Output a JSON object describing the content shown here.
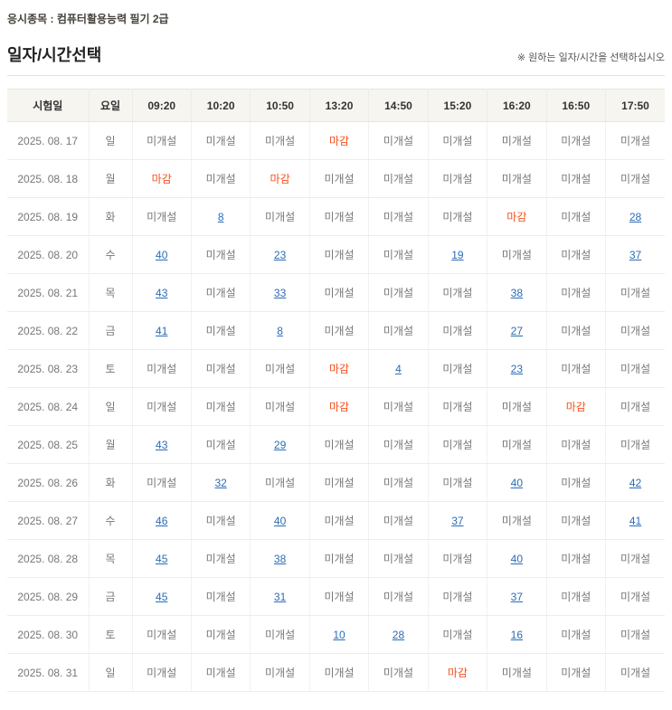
{
  "header": {
    "breadcrumb": "응시종목 : 컴퓨터활용능력 필기 2급",
    "page_title": "일자/시간선택",
    "note": "※ 원하는 일자/시간을 선택하십시오"
  },
  "legend": {
    "closed": "미개설",
    "full": "마감"
  },
  "colors": {
    "accent_full": "#f4511e",
    "link_color": "#2b6cb5",
    "closed_text": "#777777",
    "header_bg": "#f6f5f0"
  },
  "table": {
    "columns": [
      "시험일",
      "요일",
      "09:20",
      "10:20",
      "10:50",
      "13:20",
      "14:50",
      "15:20",
      "16:20",
      "16:50",
      "17:50"
    ],
    "rows": [
      {
        "date": "2025. 08. 17",
        "day": "일",
        "cells": [
          "미개설",
          "미개설",
          "미개설",
          "마감",
          "미개설",
          "미개설",
          "미개설",
          "미개설",
          "미개설"
        ]
      },
      {
        "date": "2025. 08. 18",
        "day": "월",
        "cells": [
          "마감",
          "미개설",
          "마감",
          "미개설",
          "미개설",
          "미개설",
          "미개설",
          "미개설",
          "미개설"
        ]
      },
      {
        "date": "2025. 08. 19",
        "day": "화",
        "cells": [
          "미개설",
          "8",
          "미개설",
          "미개설",
          "미개설",
          "미개설",
          "마감",
          "미개설",
          "28"
        ]
      },
      {
        "date": "2025. 08. 20",
        "day": "수",
        "cells": [
          "40",
          "미개설",
          "23",
          "미개설",
          "미개설",
          "19",
          "미개설",
          "미개설",
          "37"
        ]
      },
      {
        "date": "2025. 08. 21",
        "day": "목",
        "cells": [
          "43",
          "미개설",
          "33",
          "미개설",
          "미개설",
          "미개설",
          "38",
          "미개설",
          "미개설"
        ]
      },
      {
        "date": "2025. 08. 22",
        "day": "금",
        "cells": [
          "41",
          "미개설",
          "8",
          "미개설",
          "미개설",
          "미개설",
          "27",
          "미개설",
          "미개설"
        ]
      },
      {
        "date": "2025. 08. 23",
        "day": "토",
        "cells": [
          "미개설",
          "미개설",
          "미개설",
          "마감",
          "4",
          "미개설",
          "23",
          "미개설",
          "미개설"
        ]
      },
      {
        "date": "2025. 08. 24",
        "day": "일",
        "cells": [
          "미개설",
          "미개설",
          "미개설",
          "마감",
          "미개설",
          "미개설",
          "미개설",
          "마감",
          "미개설"
        ]
      },
      {
        "date": "2025. 08. 25",
        "day": "월",
        "cells": [
          "43",
          "미개설",
          "29",
          "미개설",
          "미개설",
          "미개설",
          "미개설",
          "미개설",
          "미개설"
        ]
      },
      {
        "date": "2025. 08. 26",
        "day": "화",
        "cells": [
          "미개설",
          "32",
          "미개설",
          "미개설",
          "미개설",
          "미개설",
          "40",
          "미개설",
          "42"
        ]
      },
      {
        "date": "2025. 08. 27",
        "day": "수",
        "cells": [
          "46",
          "미개설",
          "40",
          "미개설",
          "미개설",
          "37",
          "미개설",
          "미개설",
          "41"
        ]
      },
      {
        "date": "2025. 08. 28",
        "day": "목",
        "cells": [
          "45",
          "미개설",
          "38",
          "미개설",
          "미개설",
          "미개설",
          "40",
          "미개설",
          "미개설"
        ]
      },
      {
        "date": "2025. 08. 29",
        "day": "금",
        "cells": [
          "45",
          "미개설",
          "31",
          "미개설",
          "미개설",
          "미개설",
          "37",
          "미개설",
          "미개설"
        ]
      },
      {
        "date": "2025. 08. 30",
        "day": "토",
        "cells": [
          "미개설",
          "미개설",
          "미개설",
          "10",
          "28",
          "미개설",
          "16",
          "미개설",
          "미개설"
        ]
      },
      {
        "date": "2025. 08. 31",
        "day": "일",
        "cells": [
          "미개설",
          "미개설",
          "미개설",
          "미개설",
          "미개설",
          "마감",
          "미개설",
          "미개설",
          "미개설"
        ]
      }
    ]
  }
}
